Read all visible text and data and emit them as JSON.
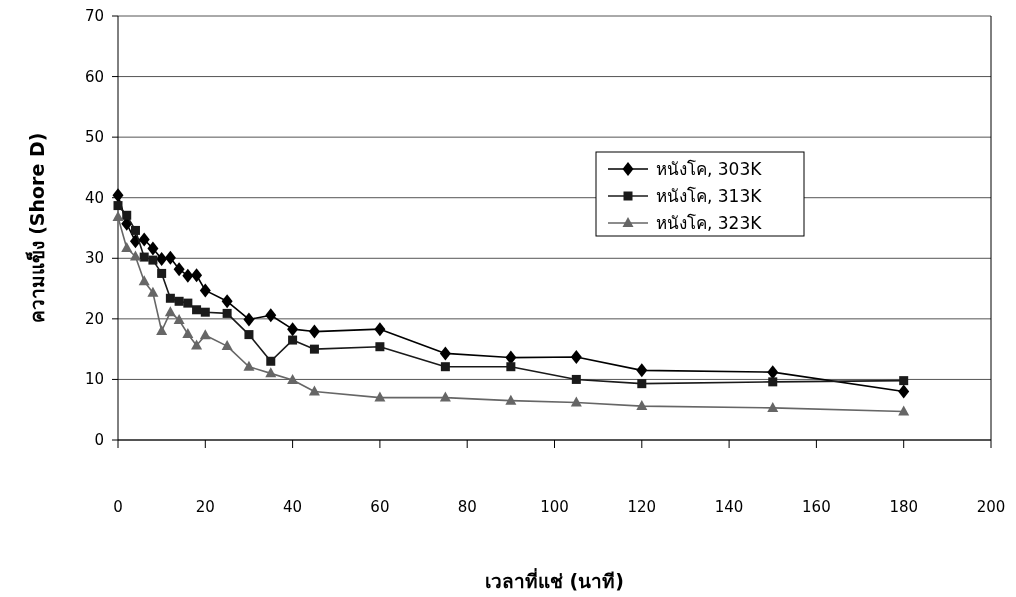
{
  "chart_data": {
    "type": "line",
    "xlabel": "เวลาที่แช่ (นาที)",
    "ylabel": "ความแข็ง (Shore D)",
    "x": [
      0,
      2,
      4,
      6,
      8,
      10,
      12,
      14,
      16,
      18,
      20,
      25,
      30,
      35,
      40,
      45,
      60,
      75,
      90,
      105,
      120,
      150,
      180
    ],
    "series": [
      {
        "name": "หนังโค, 303K",
        "color": "#000000",
        "marker": "diamond",
        "values": [
          40.4,
          35.7,
          32.8,
          33.1,
          31.6,
          29.9,
          30.1,
          28.2,
          27.1,
          27.2,
          24.7,
          22.9,
          19.9,
          20.6,
          18.3,
          17.9,
          18.3,
          14.3,
          13.6,
          13.7,
          11.5,
          11.2,
          8.0
        ]
      },
      {
        "name": "หนังโค, 313K",
        "color": "#1a1a1a",
        "marker": "square",
        "values": [
          38.7,
          37.1,
          34.6,
          30.2,
          29.7,
          27.5,
          23.4,
          22.9,
          22.6,
          21.5,
          21.1,
          20.9,
          17.4,
          13.0,
          16.5,
          15.0,
          15.4,
          12.1,
          12.1,
          10.0,
          9.3,
          9.6,
          9.8
        ]
      },
      {
        "name": "หนังโค, 323K",
        "color": "#666666",
        "marker": "triangle",
        "values": [
          36.8,
          31.7,
          30.3,
          26.2,
          24.3,
          18.0,
          21.1,
          19.8,
          17.5,
          15.6,
          17.3,
          15.5,
          12.1,
          11.0,
          9.9,
          8.0,
          7.0,
          7.0,
          6.5,
          6.2,
          5.6,
          5.3,
          4.7
        ]
      }
    ],
    "xlim": [
      0,
      200
    ],
    "xticks": [
      0,
      20,
      40,
      60,
      80,
      100,
      120,
      140,
      160,
      180,
      200
    ],
    "ylim": [
      0,
      70
    ],
    "yticks": [
      0,
      10,
      20,
      30,
      40,
      50,
      60,
      70
    ],
    "grid": "y",
    "legend": "top right",
    "line_style": "solid"
  }
}
